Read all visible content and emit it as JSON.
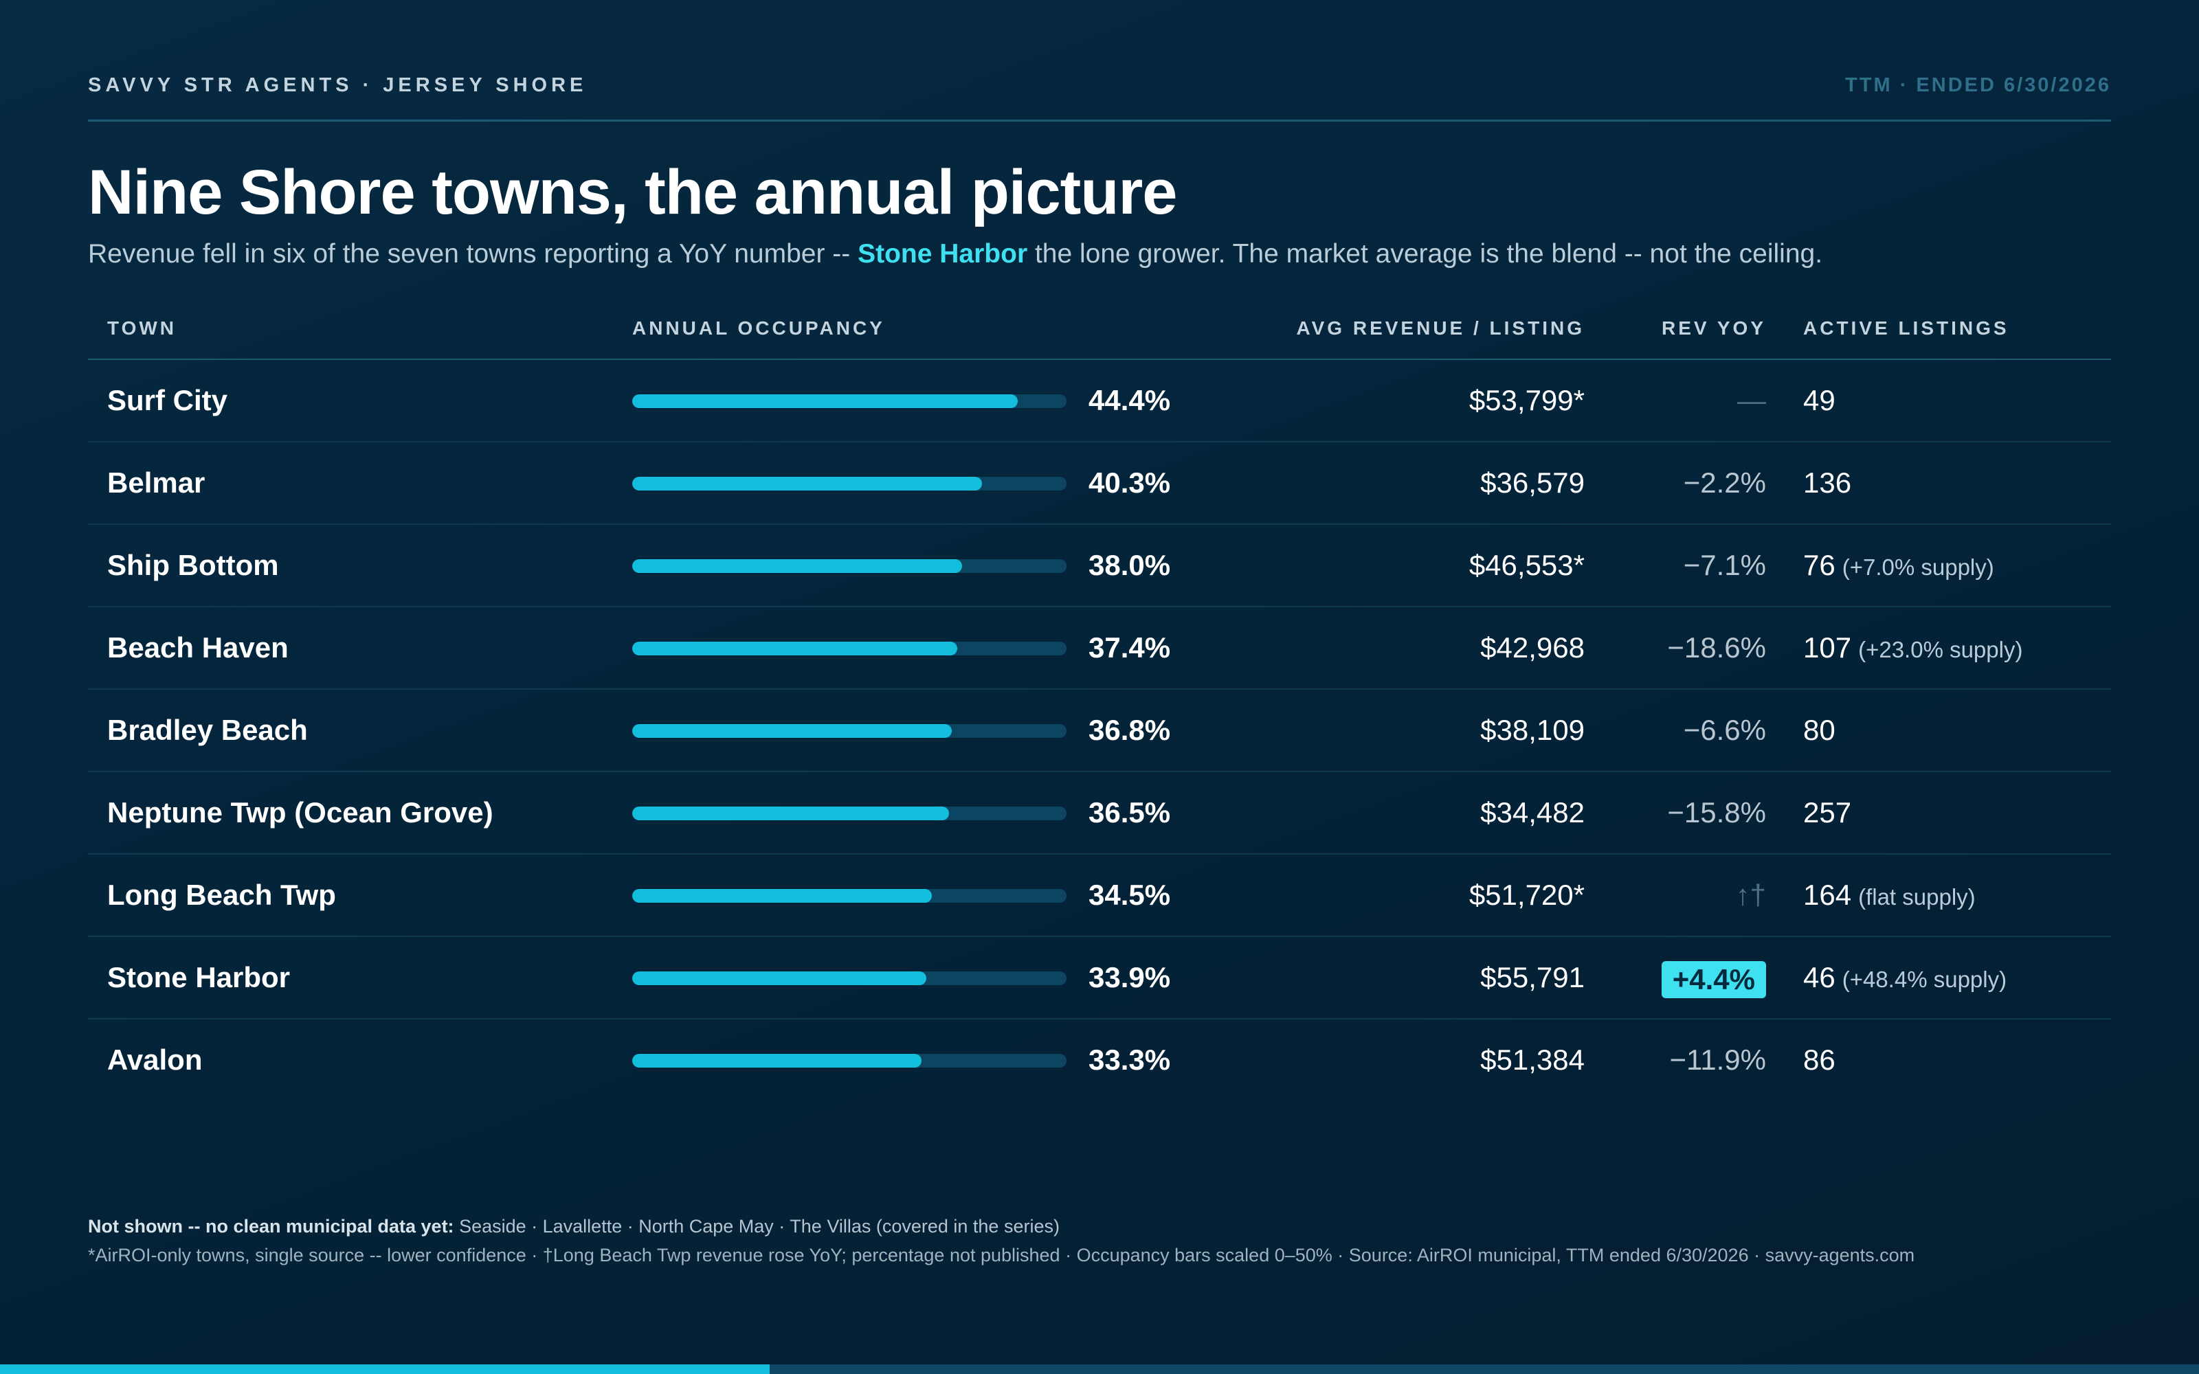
{
  "header": {
    "brand": "SAVVY STR AGENTS · JERSEY SHORE",
    "period": "TTM · ENDED 6/30/2026"
  },
  "title": "Nine Shore towns, the annual picture",
  "subtitle": {
    "before": "Revenue fell in six of the seven towns reporting a YoY number -- ",
    "highlight": "Stone Harbor",
    "after": " the lone grower. The market average is the blend -- not the ceiling."
  },
  "colors": {
    "accent": "#3fe0f0",
    "bar": "#13bedc",
    "bar_track": "#0b4562",
    "background": "#04243a"
  },
  "chart_data": {
    "type": "table",
    "columns": [
      "TOWN",
      "ANNUAL OCCUPANCY",
      "AVG REVENUE / LISTING",
      "REV YOY",
      "ACTIVE LISTINGS"
    ],
    "occupancy_scale": [
      0,
      50
    ],
    "rows": [
      {
        "town": "Surf City",
        "occupancy": 44.4,
        "occupancy_label": "44.4%",
        "revenue": "$53,799*",
        "yoy": "—",
        "yoy_style": "dim",
        "listings": "49",
        "listings_note": ""
      },
      {
        "town": "Belmar",
        "occupancy": 40.3,
        "occupancy_label": "40.3%",
        "revenue": "$36,579",
        "yoy": "−2.2%",
        "yoy_style": "neg",
        "listings": "136",
        "listings_note": ""
      },
      {
        "town": "Ship Bottom",
        "occupancy": 38.0,
        "occupancy_label": "38.0%",
        "revenue": "$46,553*",
        "yoy": "−7.1%",
        "yoy_style": "neg",
        "listings": "76",
        "listings_note": "(+7.0% supply)"
      },
      {
        "town": "Beach Haven",
        "occupancy": 37.4,
        "occupancy_label": "37.4%",
        "revenue": "$42,968",
        "yoy": "−18.6%",
        "yoy_style": "neg",
        "listings": "107",
        "listings_note": "(+23.0% supply)"
      },
      {
        "town": "Bradley Beach",
        "occupancy": 36.8,
        "occupancy_label": "36.8%",
        "revenue": "$38,109",
        "yoy": "−6.6%",
        "yoy_style": "neg",
        "listings": "80",
        "listings_note": ""
      },
      {
        "town": "Neptune Twp (Ocean Grove)",
        "occupancy": 36.5,
        "occupancy_label": "36.5%",
        "revenue": "$34,482",
        "yoy": "−15.8%",
        "yoy_style": "neg",
        "listings": "257",
        "listings_note": ""
      },
      {
        "town": "Long Beach Twp",
        "occupancy": 34.5,
        "occupancy_label": "34.5%",
        "revenue": "$51,720*",
        "yoy": "↑†",
        "yoy_style": "dim",
        "listings": "164",
        "listings_note": "(flat supply)"
      },
      {
        "town": "Stone Harbor",
        "occupancy": 33.9,
        "occupancy_label": "33.9%",
        "revenue": "$55,791",
        "yoy": "+4.4%",
        "yoy_style": "pos",
        "listings": "46",
        "listings_note": "(+48.4% supply)"
      },
      {
        "town": "Avalon",
        "occupancy": 33.3,
        "occupancy_label": "33.3%",
        "revenue": "$51,384",
        "yoy": "−11.9%",
        "yoy_style": "neg",
        "listings": "86",
        "listings_note": ""
      }
    ]
  },
  "footer": {
    "note_label": "Not shown -- no clean municipal data yet:",
    "note_text": " Seaside · Lavallette · North Cape May · The Villas (covered in the series)",
    "source": "*AirROI-only towns, single source -- lower confidence · †Long Beach Twp revenue rose YoY; percentage not published · Occupancy bars scaled 0–50% · Source: AirROI municipal, TTM ended 6/30/2026 · savvy-agents.com"
  },
  "progress": {
    "fraction": 0.35
  }
}
